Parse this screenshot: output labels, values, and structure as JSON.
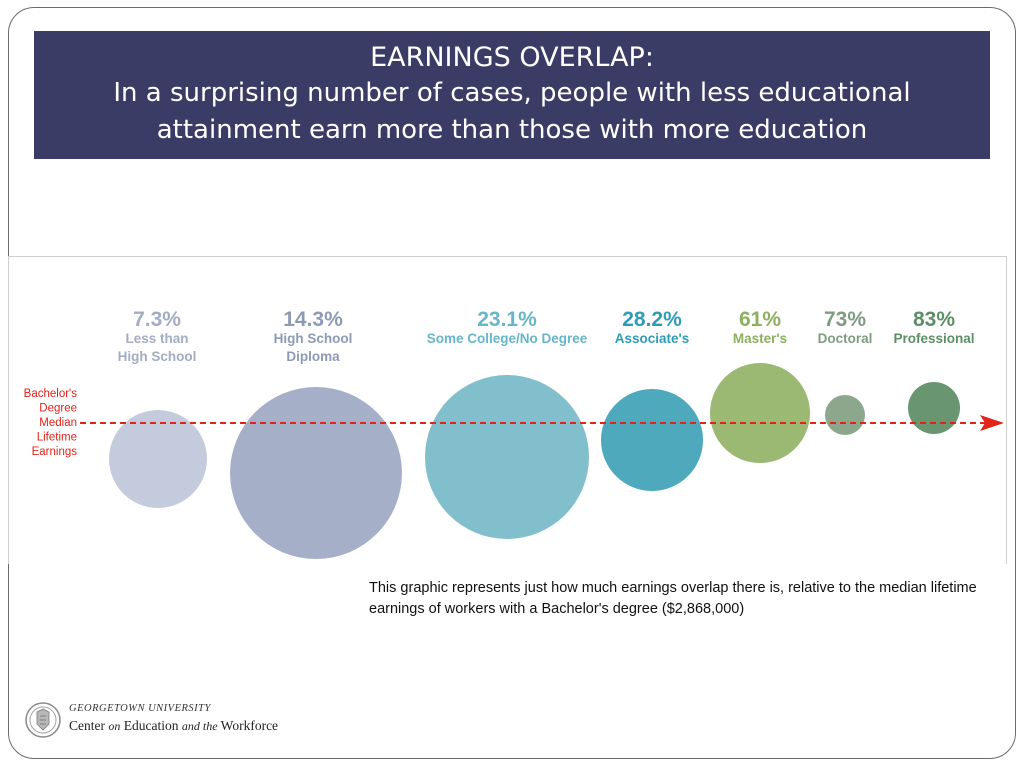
{
  "title": {
    "main": "EARNINGS OVERLAP:",
    "line1": "In a surprising number of cases, people with less educational",
    "line2": "attainment earn more than those with more education"
  },
  "chart_data": {
    "type": "bubble",
    "reference_line": {
      "label_lines": [
        "Bachelor's",
        "Degree",
        "Median",
        "Lifetime",
        "Earnings"
      ],
      "color": "#e2231a",
      "style": "dashed arrow"
    },
    "categories": [
      {
        "value": "7.3%",
        "label_lines": [
          "Less than",
          "High School"
        ],
        "color": "#c3cbdc",
        "label_color": "#a4acc3",
        "share": 7.3
      },
      {
        "value": "14.3%",
        "label_lines": [
          "High School",
          "Diploma"
        ],
        "color": "#a5b0c8",
        "label_color": "#8e9ab5",
        "share": 14.3
      },
      {
        "value": "23.1%",
        "label_lines": [
          "Some College/No Degree"
        ],
        "color": "#82bfcc",
        "label_color": "#67b6c8",
        "share": 23.1
      },
      {
        "value": "28.2%",
        "label_lines": [
          "Associate's"
        ],
        "color": "#4ea9bd",
        "label_color": "#2f9cb7",
        "share": 28.2
      },
      {
        "value": "61%",
        "label_lines": [
          "Master's"
        ],
        "color": "#9bb973",
        "label_color": "#8bb15e",
        "share": 61
      },
      {
        "value": "73%",
        "label_lines": [
          "Doctoral"
        ],
        "color": "#8da78d",
        "label_color": "#7e9c80",
        "share": 73
      },
      {
        "value": "83%",
        "label_lines": [
          "Professional"
        ],
        "color": "#6a9571",
        "label_color": "#5d8f66",
        "share": 83
      }
    ]
  },
  "caption": "This graphic represents just how much earnings overlap there is, relative to the median lifetime earnings of workers with a Bachelor's degree ($2,868,000)",
  "footer": {
    "university": "GEORGETOWN UNIVERSITY",
    "center_parts": [
      "Center",
      "on",
      "Education",
      "and the",
      "Workforce"
    ]
  }
}
